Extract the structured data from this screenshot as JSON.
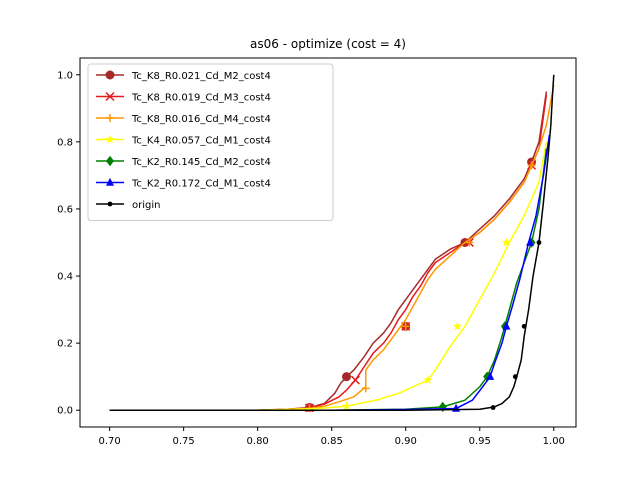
{
  "chart_data": {
    "type": "line",
    "title": "as06 - optimize (cost = 4)",
    "xlabel": "",
    "ylabel": "",
    "xlim": [
      0.68,
      1.015
    ],
    "ylim": [
      -0.05,
      1.05
    ],
    "xticks": [
      "0.70",
      "0.75",
      "0.80",
      "0.85",
      "0.90",
      "0.95",
      "1.00"
    ],
    "yticks": [
      "0.0",
      "0.2",
      "0.4",
      "0.6",
      "0.8",
      "1.0"
    ],
    "legend_position": "top-left",
    "grid": false,
    "series": [
      {
        "name": "Tc_K8_R0.021_Cd_M2_cost4",
        "color": "#a52a2a",
        "marker": "circle",
        "x": [
          0.7,
          0.8,
          0.82,
          0.835,
          0.845,
          0.852,
          0.856,
          0.86,
          0.865,
          0.872,
          0.878,
          0.885,
          0.89,
          0.895,
          0.9,
          0.905,
          0.91,
          0.915,
          0.92,
          0.93,
          0.94,
          0.95,
          0.96,
          0.97,
          0.98,
          0.985,
          0.99,
          0.995
        ],
        "y": [
          0.0,
          0.0,
          0.003,
          0.008,
          0.02,
          0.05,
          0.08,
          0.1,
          0.12,
          0.16,
          0.2,
          0.23,
          0.26,
          0.3,
          0.33,
          0.36,
          0.39,
          0.42,
          0.45,
          0.48,
          0.5,
          0.54,
          0.58,
          0.63,
          0.69,
          0.74,
          0.8,
          0.95
        ],
        "marker_x": [
          0.835,
          0.86,
          0.9,
          0.94,
          0.985
        ],
        "marker_y": [
          0.008,
          0.1,
          0.25,
          0.5,
          0.74
        ]
      },
      {
        "name": "Tc_K8_R0.019_Cd_M3_cost4",
        "color": "#e41a1c",
        "marker": "x",
        "x": [
          0.7,
          0.8,
          0.82,
          0.835,
          0.845,
          0.855,
          0.86,
          0.866,
          0.872,
          0.878,
          0.885,
          0.89,
          0.895,
          0.9,
          0.905,
          0.91,
          0.915,
          0.92,
          0.93,
          0.94,
          0.95,
          0.96,
          0.97,
          0.98,
          0.985,
          0.99,
          0.995
        ],
        "y": [
          0.0,
          0.0,
          0.003,
          0.007,
          0.018,
          0.04,
          0.06,
          0.09,
          0.13,
          0.17,
          0.2,
          0.23,
          0.27,
          0.3,
          0.34,
          0.37,
          0.41,
          0.44,
          0.47,
          0.5,
          0.53,
          0.57,
          0.62,
          0.68,
          0.73,
          0.78,
          0.94
        ],
        "marker_x": [
          0.835,
          0.866,
          0.9,
          0.943,
          0.985
        ],
        "marker_y": [
          0.007,
          0.09,
          0.25,
          0.5,
          0.73
        ]
      },
      {
        "name": "Tc_K8_R0.016_Cd_M4_cost4",
        "color": "#ff9900",
        "marker": "plus",
        "x": [
          0.7,
          0.8,
          0.82,
          0.835,
          0.845,
          0.855,
          0.865,
          0.873,
          0.873,
          0.878,
          0.885,
          0.89,
          0.895,
          0.9,
          0.905,
          0.91,
          0.915,
          0.92,
          0.93,
          0.94,
          0.95,
          0.96,
          0.97,
          0.98,
          0.985,
          0.99,
          0.995,
          1.0
        ],
        "y": [
          0.0,
          0.0,
          0.002,
          0.006,
          0.012,
          0.025,
          0.04,
          0.07,
          0.12,
          0.15,
          0.18,
          0.21,
          0.24,
          0.27,
          0.31,
          0.35,
          0.39,
          0.42,
          0.46,
          0.5,
          0.53,
          0.57,
          0.62,
          0.68,
          0.73,
          0.78,
          0.85,
          0.97
        ],
        "marker_x": [
          0.835,
          0.873,
          0.9,
          0.943,
          0.985
        ],
        "marker_y": [
          0.006,
          0.065,
          0.25,
          0.5,
          0.73
        ]
      },
      {
        "name": "Tc_K4_R0.057_Cd_M1_cost4",
        "color": "#ffff00",
        "marker": "star",
        "x": [
          0.7,
          0.8,
          0.84,
          0.86,
          0.88,
          0.895,
          0.905,
          0.915,
          0.92,
          0.93,
          0.94,
          0.95,
          0.96,
          0.97,
          0.98,
          0.99,
          0.995
        ],
        "y": [
          0.0,
          0.0,
          0.005,
          0.012,
          0.03,
          0.05,
          0.07,
          0.09,
          0.12,
          0.19,
          0.25,
          0.33,
          0.41,
          0.5,
          0.58,
          0.68,
          0.8
        ],
        "marker_x": [
          0.86,
          0.915,
          0.935,
          0.968
        ],
        "marker_y": [
          0.012,
          0.09,
          0.25,
          0.5
        ],
        "marker_color": "#ffff00"
      },
      {
        "name": "Tc_K2_R0.145_Cd_M2_cost4",
        "color": "#008000",
        "marker": "diamond",
        "x": [
          0.7,
          0.85,
          0.9,
          0.925,
          0.94,
          0.95,
          0.955,
          0.96,
          0.965,
          0.97,
          0.975,
          0.98,
          0.985,
          0.99,
          0.995
        ],
        "y": [
          0.0,
          0.0,
          0.003,
          0.01,
          0.03,
          0.07,
          0.1,
          0.15,
          0.22,
          0.3,
          0.38,
          0.44,
          0.5,
          0.6,
          0.78
        ],
        "marker_x": [
          0.925,
          0.955,
          0.967,
          0.985
        ],
        "marker_y": [
          0.01,
          0.1,
          0.25,
          0.5
        ]
      },
      {
        "name": "Tc_K2_R0.172_Cd_M1_cost4",
        "color": "#0000ff",
        "marker": "triangle",
        "x": [
          0.7,
          0.85,
          0.9,
          0.934,
          0.945,
          0.952,
          0.957,
          0.96,
          0.965,
          0.968,
          0.972,
          0.977,
          0.983,
          0.988,
          0.993,
          0.997
        ],
        "y": [
          0.0,
          0.0,
          0.002,
          0.005,
          0.03,
          0.07,
          0.1,
          0.14,
          0.2,
          0.25,
          0.31,
          0.39,
          0.5,
          0.58,
          0.7,
          0.82
        ],
        "marker_x": [
          0.934,
          0.957,
          0.968,
          0.984
        ],
        "marker_y": [
          0.005,
          0.1,
          0.25,
          0.5
        ]
      },
      {
        "name": "origin",
        "color": "#000000",
        "marker": "dot",
        "x": [
          0.7,
          0.9,
          0.95,
          0.96,
          0.965,
          0.97,
          0.973,
          0.975,
          0.978,
          0.98,
          0.983,
          0.986,
          0.99,
          0.993,
          0.996,
          0.998,
          0.999,
          1.0
        ],
        "y": [
          0.0,
          0.0,
          0.003,
          0.01,
          0.02,
          0.04,
          0.07,
          0.1,
          0.15,
          0.22,
          0.3,
          0.4,
          0.5,
          0.62,
          0.75,
          0.85,
          0.93,
          1.0
        ],
        "marker_x": [
          0.959,
          0.974,
          0.98,
          0.99
        ],
        "marker_y": [
          0.008,
          0.1,
          0.25,
          0.5
        ]
      }
    ]
  }
}
